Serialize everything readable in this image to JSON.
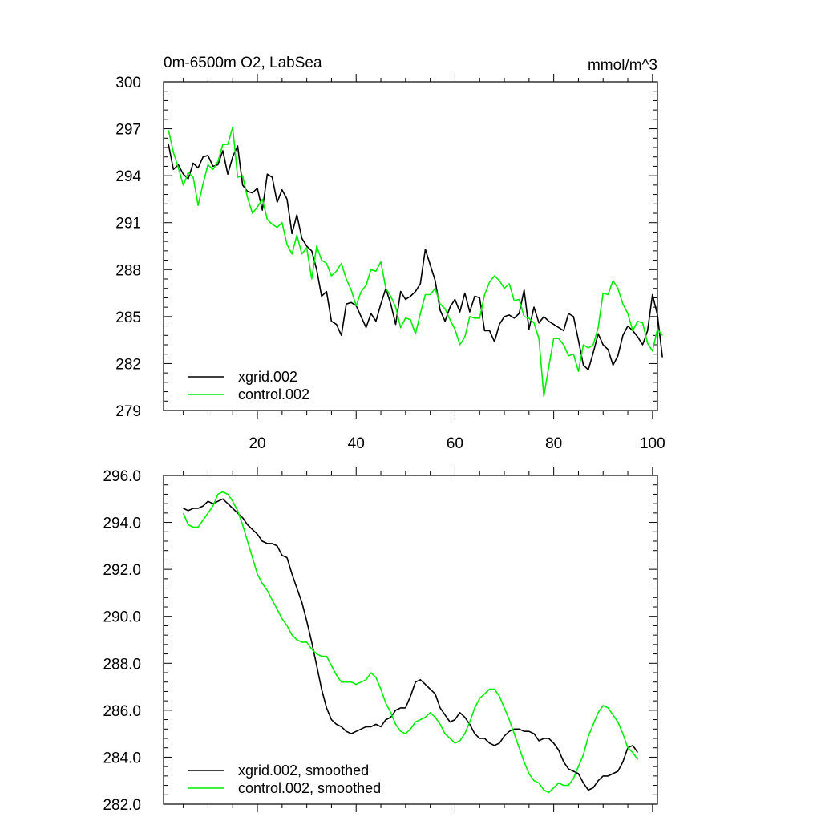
{
  "chart_data": [
    {
      "type": "line",
      "title": "0m-6500m O2, LabSea",
      "units": "mmol/m^3",
      "xlabel": "",
      "ylabel": "",
      "xlim": [
        1,
        101
      ],
      "ylim": [
        279,
        300
      ],
      "xticks": [
        20,
        40,
        60,
        80,
        100
      ],
      "yticks": [
        279,
        282,
        285,
        288,
        291,
        294,
        297,
        300
      ],
      "yticklabels": [
        "279",
        "282",
        "285",
        "288",
        "291",
        "294",
        "297",
        "300"
      ],
      "legend_position": "bottom-left",
      "grid": false,
      "x_start": 2,
      "series": [
        {
          "name": "xgrid.002",
          "color": "#000000",
          "values": [
            296.0,
            294.4,
            294.7,
            294.1,
            293.8,
            294.8,
            294.5,
            295.2,
            295.3,
            294.6,
            294.7,
            295.6,
            294.1,
            295.2,
            295.9,
            293.4,
            293.0,
            292.9,
            293.2,
            291.8,
            294.1,
            293.9,
            292.3,
            293.1,
            292.5,
            290.3,
            291.5,
            290.0,
            289.5,
            289.2,
            288.0,
            286.3,
            286.6,
            284.7,
            284.5,
            283.8,
            285.8,
            285.9,
            285.7,
            285.0,
            284.3,
            285.2,
            284.7,
            285.8,
            286.8,
            285.8,
            284.5,
            286.6,
            286.1,
            286.3,
            286.6,
            287.1,
            289.3,
            288.3,
            287.3,
            285.4,
            284.7,
            285.6,
            286.1,
            285.3,
            286.5,
            285.3,
            286.3,
            286.2,
            284.1,
            284.1,
            283.4,
            284.5,
            285.0,
            285.1,
            284.9,
            285.2,
            286.7,
            284.2,
            285.6,
            284.6,
            285.0,
            284.7,
            284.5,
            284.3,
            284.1,
            285.2,
            285.0,
            283.5,
            281.9,
            281.6,
            282.7,
            283.9,
            283.2,
            282.9,
            281.9,
            282.5,
            283.8,
            284.4,
            284.1,
            283.7,
            283.2,
            284.1,
            286.4,
            285.1,
            282.4
          ]
        },
        {
          "name": "control.002",
          "color": "#00ee00",
          "values": [
            296.9,
            295.5,
            294.5,
            293.4,
            294.2,
            293.9,
            292.1,
            293.5,
            294.7,
            294.4,
            294.9,
            296.0,
            296.0,
            297.1,
            293.9,
            294.0,
            292.6,
            291.6,
            292.0,
            292.5,
            291.2,
            290.9,
            290.7,
            291.0,
            289.6,
            289.0,
            290.2,
            289.0,
            289.4,
            287.4,
            289.5,
            288.6,
            288.4,
            287.6,
            287.9,
            288.4,
            287.4,
            286.7,
            285.7,
            286.6,
            287.0,
            288.0,
            287.9,
            288.5,
            286.8,
            286.3,
            285.6,
            284.3,
            284.9,
            284.8,
            283.9,
            285.2,
            286.4,
            286.4,
            286.8,
            285.8,
            285.5,
            284.8,
            284.2,
            283.2,
            283.7,
            285.0,
            284.9,
            284.9,
            286.4,
            287.2,
            287.6,
            287.3,
            286.8,
            287.1,
            286.0,
            286.1,
            285.0,
            284.9,
            284.6,
            283.6,
            279.9,
            281.8,
            283.6,
            283.6,
            283.2,
            282.5,
            282.6,
            281.5,
            283.2,
            283.0,
            283.2,
            284.3,
            286.5,
            286.4,
            287.3,
            286.8,
            285.8,
            285.2,
            284.1,
            284.7,
            284.6,
            283.3,
            282.8,
            284.2,
            283.8
          ]
        }
      ]
    },
    {
      "type": "line",
      "title": "",
      "units": "",
      "xlabel": "",
      "ylabel": "",
      "xlim": [
        1,
        101
      ],
      "ylim": [
        282,
        296
      ],
      "xticks": [
        20,
        40,
        60,
        80,
        100
      ],
      "show_xticklabels": false,
      "yticks": [
        282,
        284,
        286,
        288,
        290,
        292,
        294,
        296
      ],
      "yticklabels": [
        "282.0",
        "284.0",
        "286.0",
        "288.0",
        "290.0",
        "292.0",
        "294.0",
        "296.0"
      ],
      "legend_position": "bottom-left",
      "grid": false,
      "x_start": 5,
      "series": [
        {
          "name": "xgrid.002, smoothed",
          "color": "#000000",
          "values": [
            294.6,
            294.5,
            294.6,
            294.6,
            294.7,
            294.9,
            294.8,
            294.9,
            295.0,
            294.8,
            294.6,
            294.4,
            294.2,
            293.9,
            293.7,
            293.5,
            293.2,
            293.1,
            293.1,
            293.0,
            292.6,
            292.5,
            291.8,
            291.2,
            290.6,
            289.8,
            288.9,
            287.9,
            286.9,
            286.1,
            285.6,
            285.4,
            285.3,
            285.1,
            285.0,
            285.1,
            285.2,
            285.3,
            285.3,
            285.4,
            285.3,
            285.6,
            285.7,
            286.0,
            286.1,
            286.1,
            286.6,
            287.2,
            287.3,
            287.1,
            286.9,
            286.7,
            286.1,
            285.8,
            285.5,
            285.6,
            285.9,
            285.7,
            285.4,
            285.0,
            284.8,
            284.8,
            284.6,
            284.5,
            284.6,
            284.9,
            285.1,
            285.2,
            285.2,
            285.1,
            285.1,
            285.0,
            284.7,
            284.8,
            284.8,
            284.6,
            284.3,
            283.8,
            283.5,
            283.4,
            283.3,
            282.9,
            282.6,
            282.7,
            283.0,
            283.2,
            283.2,
            283.3,
            283.4,
            283.8,
            284.4,
            284.5,
            284.2
          ]
        },
        {
          "name": "control.002, smoothed",
          "color": "#00ee00",
          "values": [
            294.4,
            293.9,
            293.8,
            293.8,
            294.1,
            294.4,
            294.7,
            295.2,
            295.3,
            295.2,
            294.9,
            294.5,
            293.9,
            293.2,
            292.5,
            291.8,
            291.4,
            291.1,
            290.7,
            290.3,
            289.9,
            289.6,
            289.2,
            289.0,
            288.9,
            288.9,
            288.6,
            288.4,
            288.3,
            288.3,
            287.9,
            287.5,
            287.2,
            287.2,
            287.2,
            287.1,
            287.2,
            287.3,
            287.6,
            287.4,
            286.9,
            286.3,
            285.9,
            285.4,
            285.1,
            285.0,
            285.2,
            285.5,
            285.6,
            285.7,
            285.9,
            285.7,
            285.4,
            285.0,
            284.8,
            284.6,
            284.7,
            285.0,
            285.5,
            286.1,
            286.5,
            286.7,
            286.9,
            286.9,
            286.6,
            286.1,
            285.6,
            285.0,
            284.4,
            283.8,
            283.3,
            283.0,
            282.9,
            282.6,
            282.5,
            282.7,
            282.9,
            282.8,
            282.8,
            283.1,
            283.6,
            284.1,
            284.9,
            285.4,
            285.9,
            286.2,
            286.1,
            285.8,
            285.5,
            285.0,
            284.4,
            284.2,
            283.9
          ]
        }
      ]
    }
  ]
}
